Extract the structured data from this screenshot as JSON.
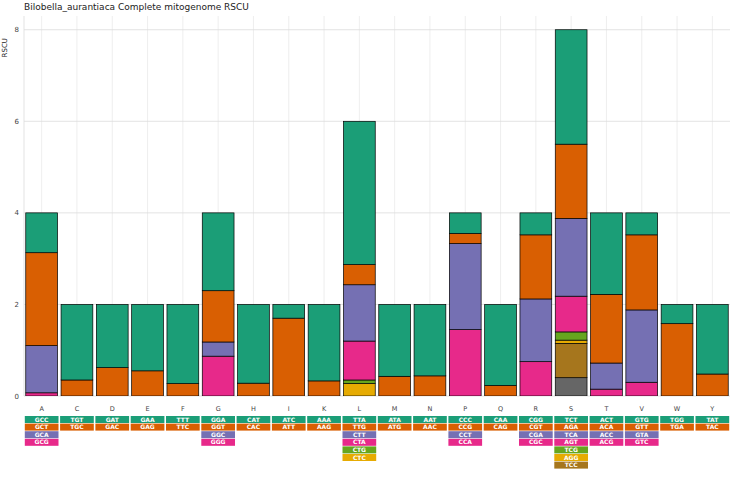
{
  "chart_data": {
    "type": "bar",
    "stacked": true,
    "grid": true,
    "title": "Bilobella_aurantiaca  Complete mitogenome RSCU",
    "ylabel": "RSCU",
    "categories": [
      "A",
      "C",
      "D",
      "E",
      "F",
      "G",
      "H",
      "I",
      "K",
      "L",
      "M",
      "N",
      "P",
      "Q",
      "R",
      "S",
      "T",
      "V",
      "W",
      "Y"
    ],
    "ylim": [
      0,
      8.3
    ],
    "yticks": [
      0,
      2,
      4,
      6,
      8
    ],
    "series": [
      {
        "color": "#1B9E77",
        "labels": [
          "GCC",
          "TGT",
          "GAT",
          "GAA",
          "TTT",
          "GGA",
          "CAT",
          "ATC",
          "AAA",
          "TTA",
          "ATA",
          "AAT",
          "CCC",
          "CAA",
          "CGG",
          "TCT",
          "ACT",
          "GTG",
          "TGG",
          "TAT"
        ],
        "values": [
          0.87,
          1.65,
          1.38,
          1.45,
          1.73,
          1.7,
          1.72,
          0.3,
          1.67,
          3.13,
          1.57,
          1.56,
          0.45,
          1.77,
          0.48,
          2.5,
          1.78,
          0.48,
          0.42,
          1.52
        ]
      },
      {
        "color": "#D95F02",
        "labels": [
          "GCT",
          "TGC",
          "GAC",
          "GAG",
          "TTC",
          "GGT",
          "CAC",
          "ATT",
          "AAG",
          "TTG",
          "ATG",
          "AAC",
          "CCG",
          "CAG",
          "CGT",
          "AGA",
          "ACA",
          "GTT",
          "TGA",
          "TAC"
        ],
        "values": [
          2.03,
          0.35,
          0.62,
          0.55,
          0.27,
          1.12,
          0.28,
          1.7,
          0.33,
          0.44,
          0.43,
          0.44,
          0.22,
          0.23,
          1.4,
          1.62,
          1.5,
          1.64,
          1.58,
          0.48
        ]
      },
      {
        "color": "#7570B3",
        "labels": [
          "GCA",
          null,
          null,
          null,
          null,
          "GGC",
          null,
          null,
          null,
          "CTT",
          null,
          null,
          "CCT",
          null,
          "CGA",
          "TCA",
          "ACC",
          "GTA",
          null,
          null
        ],
        "values": [
          1.03,
          null,
          null,
          null,
          null,
          0.31,
          null,
          null,
          null,
          1.23,
          null,
          null,
          1.88,
          null,
          1.37,
          1.7,
          0.57,
          1.58,
          null,
          null
        ]
      },
      {
        "color": "#E7298A",
        "labels": [
          "GCG",
          null,
          null,
          null,
          null,
          "GGG",
          null,
          null,
          null,
          "CTA",
          null,
          null,
          "CCA",
          null,
          "CGC",
          "AGT",
          "ACG",
          "GTC",
          null,
          null
        ],
        "values": [
          0.07,
          null,
          null,
          null,
          null,
          0.87,
          null,
          null,
          null,
          0.85,
          null,
          null,
          1.45,
          null,
          0.75,
          0.78,
          0.15,
          0.3,
          null,
          null
        ]
      },
      {
        "color": "#66A61E",
        "labels": [
          null,
          null,
          null,
          null,
          null,
          null,
          null,
          null,
          null,
          "CTG",
          null,
          null,
          null,
          null,
          null,
          "TCG",
          null,
          null,
          null,
          null
        ],
        "values": [
          null,
          null,
          null,
          null,
          null,
          null,
          null,
          null,
          null,
          0.08,
          null,
          null,
          null,
          null,
          null,
          0.18,
          null,
          null,
          null,
          null
        ]
      },
      {
        "color": "#E6AB02",
        "labels": [
          null,
          null,
          null,
          null,
          null,
          null,
          null,
          null,
          null,
          "CTC",
          null,
          null,
          null,
          null,
          null,
          "AGG",
          null,
          null,
          null,
          null
        ],
        "values": [
          null,
          null,
          null,
          null,
          null,
          null,
          null,
          null,
          null,
          0.27,
          null,
          null,
          null,
          null,
          null,
          0.07,
          null,
          null,
          null,
          null
        ]
      },
      {
        "color": "#A6761D",
        "labels": [
          null,
          null,
          null,
          null,
          null,
          null,
          null,
          null,
          null,
          null,
          null,
          null,
          null,
          null,
          null,
          "TCC",
          null,
          null,
          null,
          null
        ],
        "values": [
          null,
          null,
          null,
          null,
          null,
          null,
          null,
          null,
          null,
          null,
          null,
          null,
          null,
          null,
          null,
          0.75,
          null,
          null,
          null,
          null
        ]
      },
      {
        "color": "#666666",
        "labels": [
          null,
          null,
          null,
          null,
          null,
          null,
          null,
          null,
          null,
          null,
          null,
          null,
          null,
          null,
          null,
          null,
          null,
          null,
          null,
          null
        ],
        "values": [
          null,
          null,
          null,
          null,
          null,
          null,
          null,
          null,
          null,
          null,
          null,
          null,
          null,
          null,
          null,
          0.4,
          null,
          null,
          null,
          null
        ]
      }
    ]
  }
}
